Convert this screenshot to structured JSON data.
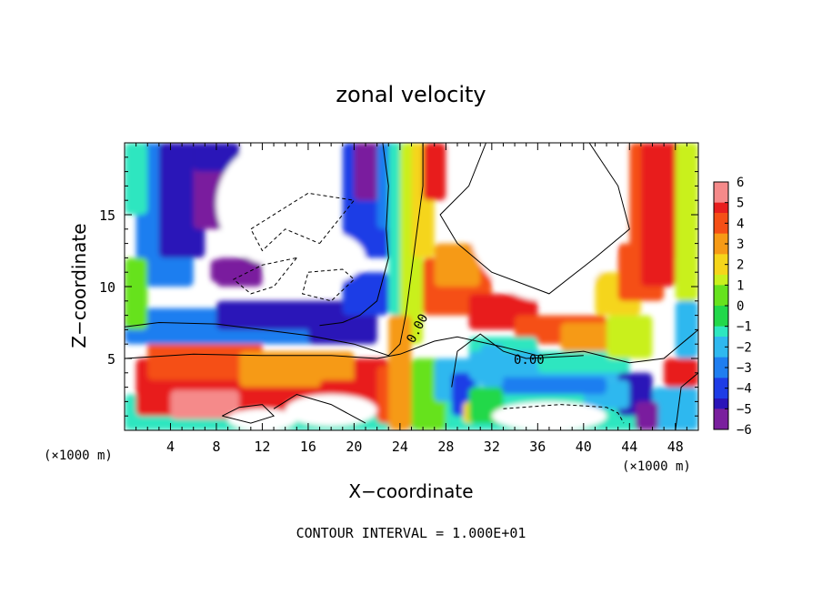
{
  "chart_data": {
    "type": "heatmap",
    "title": "zonal velocity",
    "xlabel": "X−coordinate",
    "ylabel": "Z−coordinate",
    "x_unit_left": "(×1000 m)",
    "x_unit_right": "(×1000 m)",
    "xlim": [
      0,
      50
    ],
    "ylim": [
      0,
      20
    ],
    "x_ticks": [
      4,
      8,
      12,
      16,
      20,
      24,
      28,
      32,
      36,
      40,
      44,
      48
    ],
    "y_ticks": [
      5,
      10,
      15
    ],
    "colorbar": {
      "ticks": [
        "6",
        "5",
        "4",
        "3",
        "2",
        "1",
        "0",
        "−1",
        "−2",
        "−3",
        "−4",
        "−5",
        "−6"
      ],
      "range": [
        -6,
        6
      ]
    },
    "contour_labels": [
      "0.00",
      "0.00"
    ],
    "footer": "CONTOUR INTERVAL = 1.000E+01"
  }
}
